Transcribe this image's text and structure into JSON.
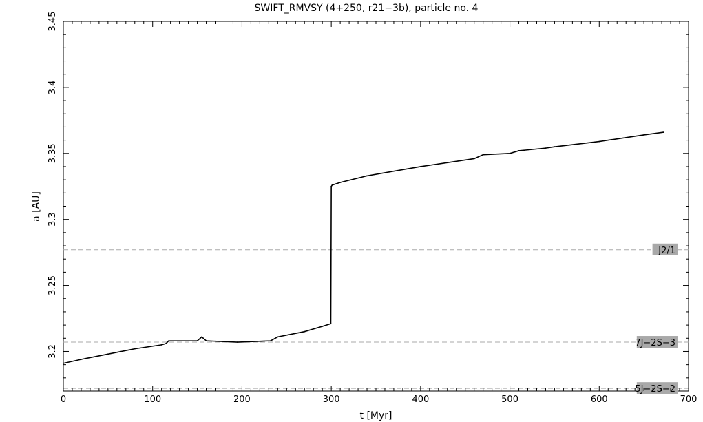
{
  "chart_data": {
    "type": "line",
    "title": "SWIFT_RMVSY (4+250, r21−3b), particle no. 4",
    "xlabel": "t [Myr]",
    "ylabel": "a [AU]",
    "xlim": [
      0,
      700
    ],
    "ylim": [
      3.17,
      3.45
    ],
    "x_ticks": [
      0,
      100,
      200,
      300,
      400,
      500,
      600,
      700
    ],
    "y_ticks": [
      3.2,
      3.25,
      3.3,
      3.35,
      3.4,
      3.45
    ],
    "y_tick_labels": [
      "3.2",
      "3.25",
      "3.3",
      "3.35",
      "3.4",
      "3.45"
    ],
    "grid": false,
    "series": [
      {
        "color": "#000000",
        "x": [
          0,
          20,
          50,
          80,
          110,
          115,
          118,
          150,
          155,
          160,
          195,
          232,
          240,
          270,
          290,
          299.5,
          300,
          301,
          310,
          340,
          400,
          460,
          470,
          500,
          510,
          540,
          550,
          600,
          650,
          672
        ],
        "y": [
          3.191,
          3.194,
          3.198,
          3.202,
          3.205,
          3.206,
          3.208,
          3.208,
          3.211,
          3.208,
          3.207,
          3.208,
          3.211,
          3.215,
          3.219,
          3.221,
          3.325,
          3.326,
          3.328,
          3.333,
          3.34,
          3.346,
          3.349,
          3.35,
          3.352,
          3.354,
          3.355,
          3.359,
          3.364,
          3.366
        ]
      }
    ],
    "resonances": [
      {
        "name": "J2/1",
        "a": 3.277
      },
      {
        "name": "7J−2S−3",
        "a": 3.207
      },
      {
        "name": "5J−2S−2",
        "a": 3.172
      }
    ]
  }
}
